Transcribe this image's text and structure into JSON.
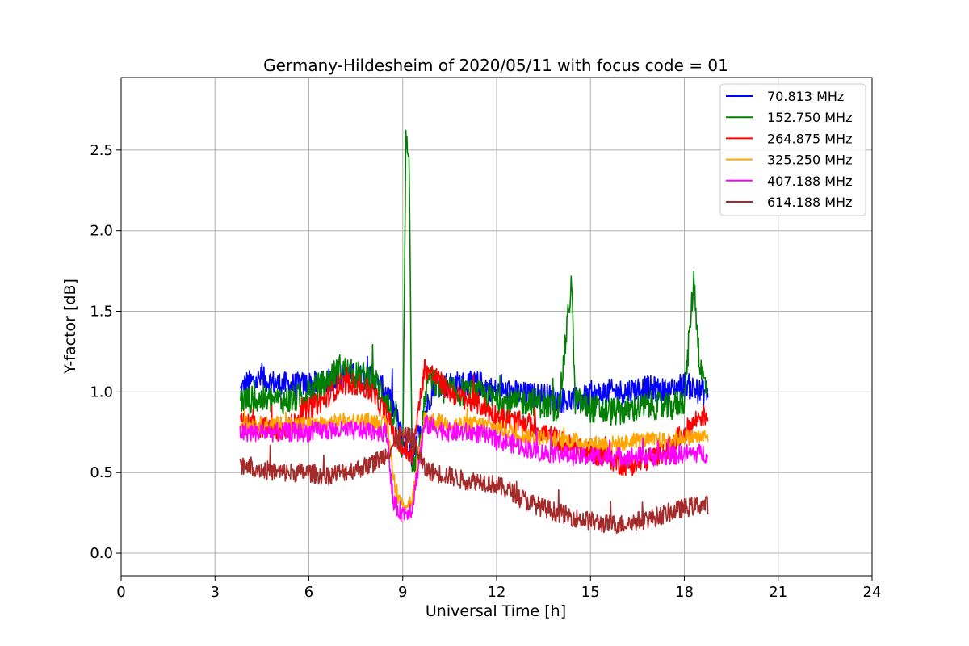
{
  "chart_data": {
    "type": "line",
    "title": "Germany-Hildesheim of 2020/05/11 with focus code = 01",
    "xlabel": "Universal Time [h]",
    "ylabel": "Y-factor [dB]",
    "xlim": [
      0,
      24
    ],
    "ylim": [
      -0.14,
      2.95
    ],
    "xticks": [
      0,
      3,
      6,
      9,
      12,
      15,
      18,
      21,
      24
    ],
    "yticks": [
      0.0,
      0.5,
      1.0,
      1.5,
      2.0,
      2.5
    ],
    "xtick_labels": [
      "0",
      "3",
      "6",
      "9",
      "12",
      "15",
      "18",
      "21",
      "24"
    ],
    "ytick_labels": [
      "0.0",
      "0.5",
      "1.0",
      "1.5",
      "2.0",
      "2.5"
    ],
    "grid": true,
    "legend_position": "top-right",
    "series": [
      {
        "name": " 70.813 MHz",
        "color": "#0000ff",
        "x": [
          3.8,
          4.0,
          4.5,
          5.0,
          5.5,
          6.0,
          6.5,
          7.0,
          7.5,
          8.0,
          8.5,
          8.8,
          9.0,
          9.3,
          9.6,
          10.0,
          10.5,
          11.0,
          11.5,
          12.0,
          12.5,
          13.0,
          13.5,
          14.0,
          14.5,
          15.0,
          15.5,
          16.0,
          16.5,
          17.0,
          17.5,
          18.0,
          18.5,
          18.75
        ],
        "y": [
          1.0,
          1.05,
          1.08,
          1.05,
          1.04,
          1.05,
          1.05,
          1.1,
          1.1,
          1.08,
          1.0,
          0.85,
          0.7,
          0.6,
          0.8,
          1.05,
          1.05,
          1.05,
          1.05,
          1.0,
          1.0,
          0.98,
          0.98,
          0.95,
          0.95,
          0.97,
          1.0,
          1.0,
          1.02,
          1.02,
          1.0,
          1.05,
          1.0,
          1.0
        ],
        "spread": 0.08
      },
      {
        "name": "152.750 MHz",
        "color": "#008000",
        "x": [
          3.8,
          4.0,
          4.5,
          5.0,
          5.5,
          6.0,
          6.5,
          7.0,
          7.5,
          8.0,
          8.5,
          8.8,
          9.0,
          9.1,
          9.2,
          9.3,
          9.5,
          9.8,
          10.0,
          10.5,
          11.0,
          11.5,
          12.0,
          12.5,
          13.0,
          13.5,
          14.0,
          14.4,
          14.5,
          15.0,
          15.5,
          16.0,
          16.5,
          17.0,
          17.5,
          18.0,
          18.3,
          18.5,
          18.75
        ],
        "y": [
          0.95,
          0.95,
          0.95,
          0.95,
          0.95,
          1.0,
          1.05,
          1.15,
          1.1,
          1.1,
          0.95,
          0.75,
          0.6,
          2.6,
          2.5,
          0.55,
          0.6,
          1.1,
          1.05,
          1.0,
          1.0,
          0.98,
          0.95,
          0.92,
          0.95,
          0.92,
          0.9,
          1.7,
          0.95,
          0.9,
          0.88,
          0.88,
          0.9,
          0.92,
          0.9,
          0.95,
          1.7,
          1.15,
          1.0
        ],
        "spread": 0.09
      },
      {
        "name": "264.875 MHz",
        "color": "#ff0000",
        "x": [
          3.8,
          4.0,
          4.5,
          5.0,
          5.5,
          6.0,
          6.5,
          7.0,
          7.5,
          8.0,
          8.5,
          8.8,
          9.0,
          9.3,
          9.7,
          10.0,
          10.5,
          11.0,
          11.5,
          12.0,
          12.5,
          13.0,
          13.5,
          14.0,
          14.5,
          15.0,
          15.5,
          16.0,
          16.5,
          17.0,
          17.5,
          18.0,
          18.5,
          18.75
        ],
        "y": [
          0.8,
          0.8,
          0.78,
          0.75,
          0.8,
          0.9,
          0.95,
          1.05,
          1.05,
          1.0,
          0.85,
          0.7,
          0.65,
          0.6,
          1.15,
          1.1,
          1.0,
          0.95,
          0.92,
          0.85,
          0.82,
          0.8,
          0.75,
          0.7,
          0.65,
          0.62,
          0.6,
          0.55,
          0.55,
          0.6,
          0.65,
          0.75,
          0.85,
          0.85
        ],
        "spread": 0.07
      },
      {
        "name": "325.250 MHz",
        "color": "#ffa500",
        "x": [
          3.8,
          4.0,
          4.5,
          5.0,
          5.5,
          6.0,
          6.5,
          7.0,
          7.5,
          8.0,
          8.5,
          8.8,
          9.0,
          9.3,
          9.7,
          10.0,
          10.5,
          11.0,
          11.5,
          12.0,
          12.5,
          13.0,
          13.5,
          14.0,
          14.5,
          15.0,
          15.5,
          16.0,
          16.5,
          17.0,
          17.5,
          18.0,
          18.5,
          18.75
        ],
        "y": [
          0.8,
          0.8,
          0.8,
          0.8,
          0.8,
          0.8,
          0.8,
          0.82,
          0.82,
          0.82,
          0.8,
          0.35,
          0.3,
          0.32,
          0.85,
          0.82,
          0.8,
          0.8,
          0.8,
          0.78,
          0.75,
          0.72,
          0.72,
          0.7,
          0.7,
          0.68,
          0.68,
          0.68,
          0.7,
          0.7,
          0.7,
          0.72,
          0.72,
          0.72
        ],
        "spread": 0.05
      },
      {
        "name": "407.188 MHz",
        "color": "#ff00ff",
        "x": [
          3.8,
          4.0,
          4.5,
          5.0,
          5.5,
          6.0,
          6.5,
          7.0,
          7.5,
          8.0,
          8.5,
          8.7,
          9.0,
          9.3,
          9.7,
          10.0,
          10.5,
          11.0,
          11.5,
          12.0,
          12.5,
          13.0,
          13.5,
          14.0,
          14.5,
          15.0,
          15.5,
          16.0,
          16.5,
          17.0,
          17.5,
          18.0,
          18.5,
          18.75
        ],
        "y": [
          0.75,
          0.75,
          0.75,
          0.75,
          0.75,
          0.75,
          0.76,
          0.76,
          0.76,
          0.76,
          0.75,
          0.3,
          0.25,
          0.28,
          0.8,
          0.78,
          0.75,
          0.75,
          0.74,
          0.7,
          0.68,
          0.65,
          0.62,
          0.62,
          0.6,
          0.6,
          0.6,
          0.6,
          0.6,
          0.6,
          0.6,
          0.62,
          0.62,
          0.62
        ],
        "spread": 0.06
      },
      {
        "name": "614.188 MHz",
        "color": "#a52a2a",
        "x": [
          3.8,
          4.0,
          4.5,
          5.0,
          5.5,
          6.0,
          6.5,
          7.0,
          7.5,
          8.0,
          8.5,
          8.8,
          9.0,
          9.3,
          9.7,
          10.0,
          10.5,
          11.0,
          11.5,
          12.0,
          12.5,
          13.0,
          13.5,
          14.0,
          14.5,
          15.0,
          15.5,
          16.0,
          16.5,
          17.0,
          17.5,
          18.0,
          18.5,
          18.75
        ],
        "y": [
          0.55,
          0.55,
          0.52,
          0.5,
          0.5,
          0.5,
          0.48,
          0.5,
          0.52,
          0.55,
          0.62,
          0.7,
          0.72,
          0.72,
          0.52,
          0.5,
          0.48,
          0.45,
          0.45,
          0.42,
          0.38,
          0.32,
          0.28,
          0.25,
          0.22,
          0.2,
          0.18,
          0.18,
          0.2,
          0.22,
          0.25,
          0.28,
          0.3,
          0.3
        ],
        "spread": 0.06
      }
    ]
  }
}
